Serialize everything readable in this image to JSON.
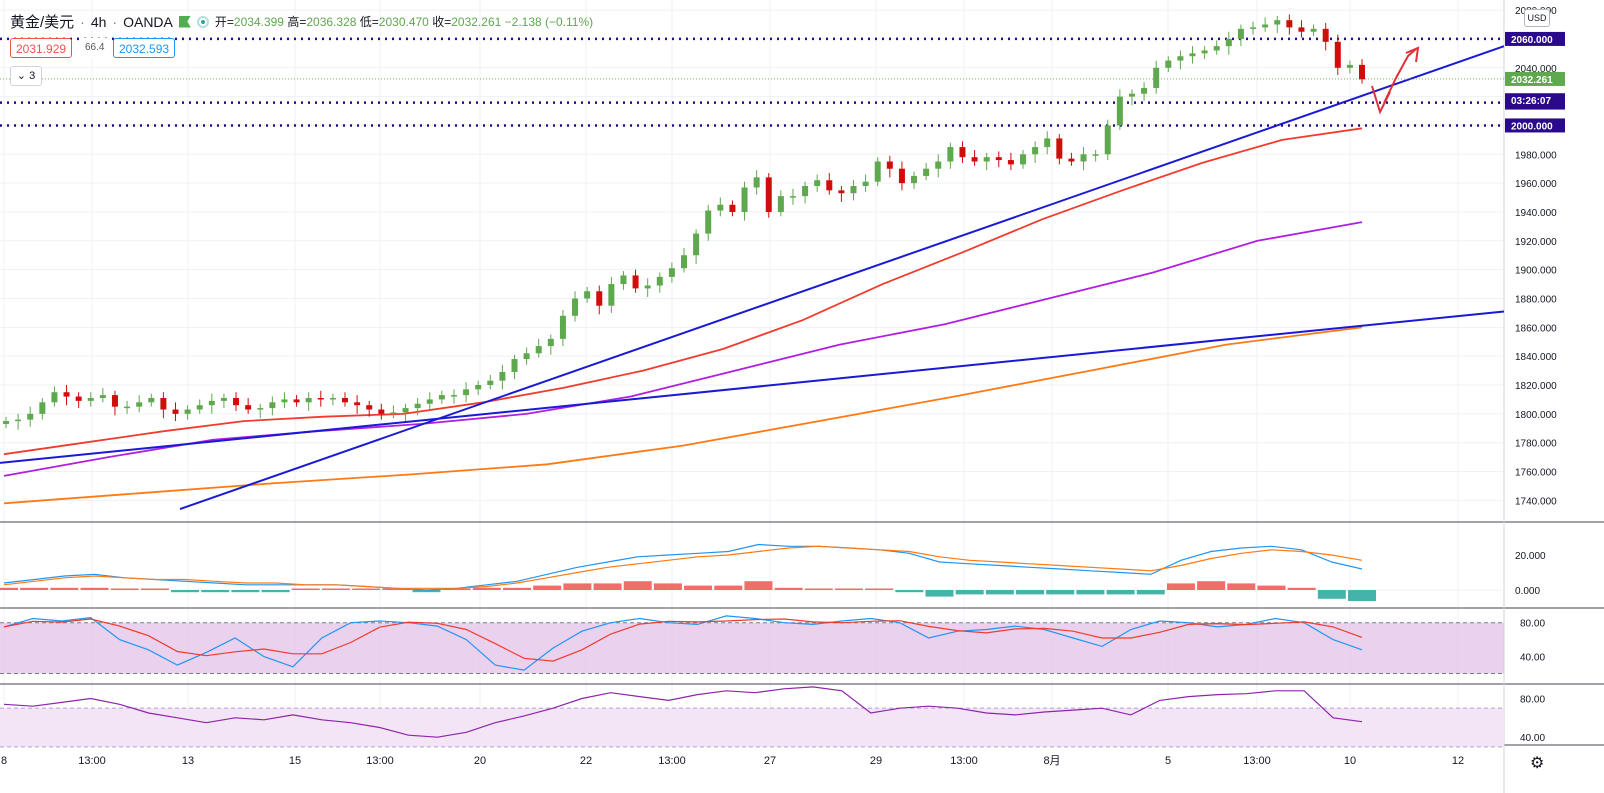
{
  "header": {
    "symbol": "黄金/美元",
    "interval": "4h",
    "source": "OANDA",
    "ohlc": {
      "open_label": "开",
      "open": "2034.399",
      "high_label": "高",
      "high": "2036.328",
      "low_label": "低",
      "low": "2030.470",
      "close_label": "收",
      "close": "2032.261",
      "change": "−2.138 (−0.11%)"
    }
  },
  "trade": {
    "sell": "2031.929",
    "spread": "66.4",
    "buy": "2032.593"
  },
  "indicators_collapsed": "3",
  "currency": "USD",
  "colors": {
    "up": "#5ea84d",
    "down": "#d20b0b",
    "ma_red": "#f03c2e",
    "ma_purple": "#b020e0",
    "ma_orange": "#ff7a14",
    "trend": "#1a1ad4",
    "level": "#2a0a8a",
    "macd_fast": "#2196f3",
    "macd_slow": "#ff7a14",
    "hist_up": "#ef5350",
    "hist_down": "#26a69a",
    "rsi": "#8e24aa",
    "band": "#e1bee7"
  },
  "chart_data": [
    {
      "type": "candlestick",
      "title": "黄金/美元 · 4h · OANDA",
      "y_ticks": [
        "1740.000",
        "1760.000",
        "1780.000",
        "1800.000",
        "1820.000",
        "1840.000",
        "1860.000",
        "1880.000",
        "1900.000",
        "1920.000",
        "1940.000",
        "1960.000",
        "1980.000",
        "2000.000",
        "2020.000",
        "2040.000",
        "2060.000",
        "2080.000"
      ],
      "x_ticks": [
        "8",
        "13:00",
        "13",
        "15",
        "13:00",
        "20",
        "22",
        "13:00",
        "27",
        "29",
        "13:00",
        "8月",
        "5",
        "13:00",
        "10",
        "12"
      ],
      "ylim": [
        1725,
        2087
      ],
      "levels": [
        {
          "label": "2060.000",
          "value": 2060
        },
        {
          "label": "2015.869",
          "value": 2015.869
        },
        {
          "label": "2000.000",
          "value": 2000
        }
      ],
      "price_labels": [
        {
          "label": "2032.261",
          "value": 2032.261,
          "kind": "last"
        },
        {
          "label": "03:26:07",
          "value": 2017.5,
          "kind": "countdown"
        }
      ],
      "series": [
        {
          "name": "close",
          "values": [
            1795,
            1796,
            1800,
            1808,
            1815,
            1812,
            1809,
            1811,
            1813,
            1805,
            1805,
            1808,
            1811,
            1803,
            1800,
            1803,
            1806,
            1809,
            1811,
            1806,
            1803,
            1804,
            1808,
            1810,
            1808,
            1811,
            1810,
            1811,
            1808,
            1806,
            1803,
            1800,
            1801,
            1804,
            1807,
            1810,
            1813,
            1813,
            1817,
            1820,
            1823,
            1829,
            1838,
            1842,
            1847,
            1852,
            1868,
            1880,
            1885,
            1875,
            1890,
            1896,
            1887,
            1889,
            1895,
            1901,
            1910,
            1925,
            1941,
            1945,
            1940,
            1957,
            1964,
            1940,
            1951,
            1951,
            1958,
            1962,
            1955,
            1953,
            1958,
            1961,
            1975,
            1970,
            1960,
            1965,
            1970,
            1975,
            1985,
            1978,
            1975,
            1978,
            1976,
            1973,
            1980,
            1985,
            1991,
            1977,
            1975,
            1980,
            1980,
            2000,
            2020,
            2022,
            2026,
            2040,
            2045,
            2048,
            2050,
            2052,
            2055,
            2060,
            2067,
            2068,
            2070,
            2073,
            2068,
            2065,
            2067,
            2058,
            2040,
            2042,
            2032
          ]
        },
        {
          "name": "MA red",
          "values": [
            1772,
            1780,
            1788,
            1795,
            1798,
            1800,
            1808,
            1818,
            1830,
            1845,
            1865,
            1890,
            1912,
            1935,
            1955,
            1974,
            1990,
            1998
          ]
        },
        {
          "name": "MA purple",
          "values": [
            1757,
            1770,
            1782,
            1788,
            1793,
            1800,
            1812,
            1830,
            1848,
            1862,
            1880,
            1898,
            1920,
            1933
          ]
        },
        {
          "name": "MA orange",
          "values": [
            1738,
            1745,
            1752,
            1758,
            1765,
            1778,
            1795,
            1812,
            1830,
            1848,
            1860
          ]
        }
      ]
    },
    {
      "type": "line",
      "title": "MACD",
      "y_ticks": [
        "20.000",
        "0.000"
      ],
      "series": [
        {
          "name": "fast",
          "values": [
            4,
            6,
            8,
            9,
            7,
            6,
            5,
            4,
            3,
            3,
            3,
            3,
            2,
            1,
            0,
            1,
            3,
            5,
            9,
            13,
            16,
            19,
            20,
            21,
            22,
            26,
            25,
            25,
            24,
            23,
            21,
            16,
            15,
            14,
            13,
            12,
            11,
            10,
            9,
            17,
            22,
            24,
            25,
            23,
            16,
            12
          ]
        },
        {
          "name": "slow",
          "values": [
            3,
            5,
            7,
            8,
            7,
            6,
            6,
            5,
            4,
            4,
            3,
            3,
            2,
            1,
            1,
            1,
            2,
            4,
            7,
            10,
            13,
            15,
            17,
            19,
            20,
            22,
            24,
            25,
            24,
            23,
            22,
            19,
            17,
            16,
            15,
            14,
            13,
            12,
            11,
            14,
            18,
            21,
            23,
            22,
            20,
            17
          ]
        }
      ]
    },
    {
      "type": "line",
      "title": "Stochastic",
      "y_ticks": [
        "80.00",
        "40.00"
      ],
      "series": [
        {
          "name": "%K",
          "values": [
            75,
            85,
            82,
            86,
            60,
            48,
            30,
            45,
            62,
            40,
            28,
            62,
            80,
            82,
            80,
            76,
            60,
            30,
            24,
            50,
            70,
            80,
            85,
            80,
            78,
            88,
            85,
            80,
            78,
            82,
            85,
            80,
            62,
            70,
            72,
            76,
            72,
            62,
            52,
            72,
            82,
            80,
            75,
            78,
            85,
            80,
            60,
            48
          ]
        }
      ]
    },
    {
      "type": "line",
      "title": "RSI",
      "y_ticks": [
        "80.00",
        "40.00"
      ],
      "series": [
        {
          "name": "RSI",
          "values": [
            74,
            72,
            76,
            80,
            74,
            65,
            60,
            55,
            60,
            58,
            63,
            58,
            55,
            50,
            42,
            40,
            45,
            55,
            62,
            70,
            80,
            86,
            82,
            78,
            84,
            88,
            86,
            90,
            92,
            88,
            65,
            70,
            72,
            70,
            65,
            63,
            66,
            68,
            70,
            63,
            78,
            82,
            84,
            85,
            88,
            88,
            60,
            56
          ]
        }
      ]
    }
  ]
}
